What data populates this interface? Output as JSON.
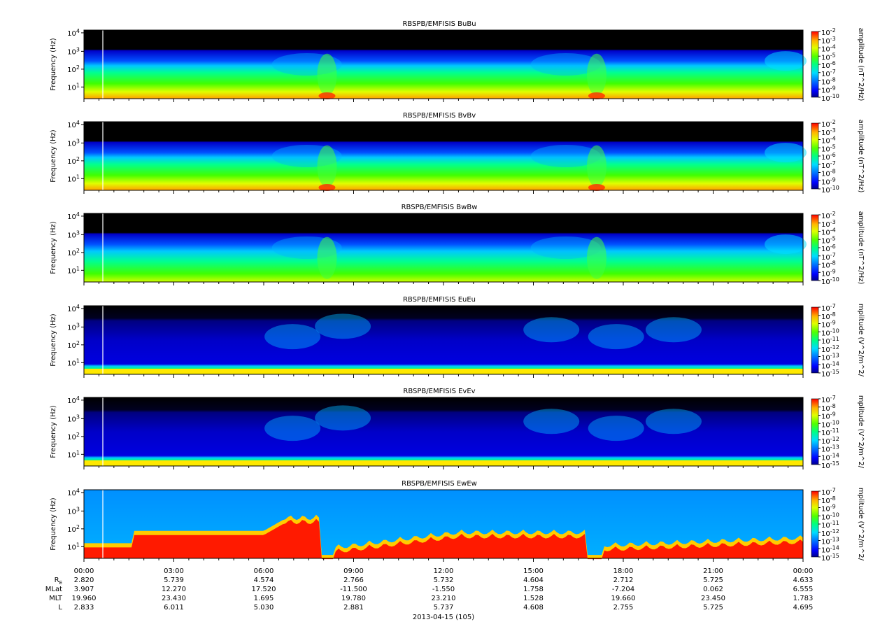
{
  "chart_data": {
    "type": "heatmap",
    "date_label": "2013-04-15 (105)",
    "x_ticks": [
      "00:00",
      "03:00",
      "06:00",
      "09:00",
      "12:00",
      "15:00",
      "18:00",
      "21:00",
      "00:00"
    ],
    "y_axis": {
      "label": "Frequency (Hz)",
      "scale": "log",
      "ticks": [
        "10^1",
        "10^2",
        "10^3",
        "10^4"
      ]
    },
    "ephemeris": {
      "row_labels": [
        "R_E",
        "MLat",
        "MLT",
        "L"
      ],
      "rows": [
        [
          "2.820",
          "5.739",
          "4.574",
          "2.766",
          "5.732",
          "4.604",
          "2.712",
          "5.725",
          "4.633"
        ],
        [
          "3.907",
          "12.270",
          "17.520",
          "-11.500",
          "-1.550",
          "1.758",
          "-7.204",
          "0.062",
          "6.555"
        ],
        [
          "19.960",
          "23.430",
          "1.695",
          "19.780",
          "23.210",
          "1.528",
          "19.660",
          "23.450",
          "1.783"
        ],
        [
          "2.833",
          "6.011",
          "5.030",
          "2.881",
          "5.737",
          "4.608",
          "2.755",
          "5.725",
          "4.695"
        ]
      ]
    },
    "panels": [
      {
        "title": "RBSPB/EMFISIS  BuBu",
        "colorbar_label": "amplitude (nT^2/Hz)",
        "cbar_ticks": [
          "10^-2",
          "10^-3",
          "10^-4",
          "10^-5",
          "10^-6",
          "10^-7",
          "10^-8",
          "10^-9",
          "10^-10"
        ],
        "kind": "B"
      },
      {
        "title": "RBSPB/EMFISIS  BvBv",
        "colorbar_label": "amplitude (nT^2/Hz)",
        "cbar_ticks": [
          "10^-2",
          "10^-3",
          "10^-4",
          "10^-5",
          "10^-6",
          "10^-7",
          "10^-8",
          "10^-9",
          "10^-10"
        ],
        "kind": "B"
      },
      {
        "title": "RBSPB/EMFISIS  BwBw",
        "colorbar_label": "amplitude (nT^2/Hz)",
        "cbar_ticks": [
          "10^-2",
          "10^-3",
          "10^-4",
          "10^-5",
          "10^-6",
          "10^-7",
          "10^-8",
          "10^-9",
          "10^-10"
        ],
        "kind": "Bw"
      },
      {
        "title": "RBSPB/EMFISIS  EuEu",
        "colorbar_label": "mplitude (V^2/m^2/",
        "cbar_ticks": [
          "10^-7",
          "10^-8",
          "10^-9",
          "10^-10",
          "10^-11",
          "10^-12",
          "10^-13",
          "10^-14",
          "10^-15"
        ],
        "kind": "E"
      },
      {
        "title": "RBSPB/EMFISIS  EvEv",
        "colorbar_label": "mplitude (V^2/m^2/",
        "cbar_ticks": [
          "10^-7",
          "10^-8",
          "10^-9",
          "10^-10",
          "10^-11",
          "10^-12",
          "10^-13",
          "10^-14",
          "10^-15"
        ],
        "kind": "E"
      },
      {
        "title": "RBSPB/EMFISIS  EwEw",
        "colorbar_label": "mplitude (V^2/m^2/",
        "cbar_ticks": [
          "10^-7",
          "10^-8",
          "10^-9",
          "10^-10",
          "10^-11",
          "10^-12",
          "10^-13",
          "10^-14",
          "10^-15"
        ],
        "kind": "Ew"
      }
    ]
  }
}
